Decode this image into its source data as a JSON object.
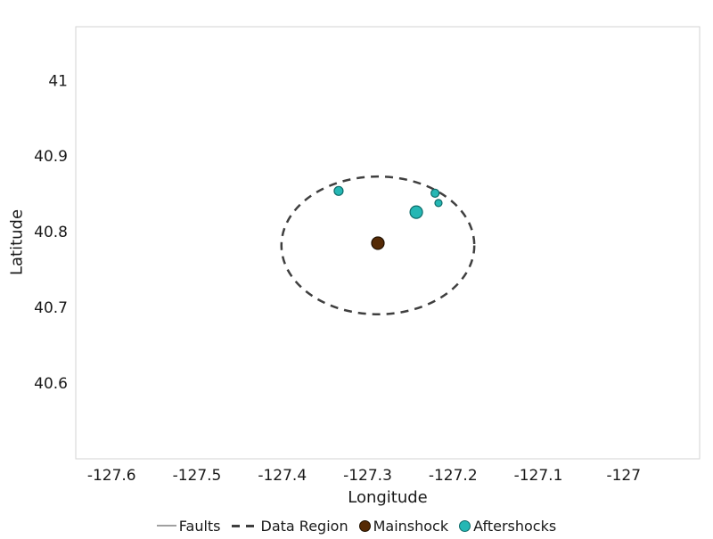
{
  "chart_data": {
    "type": "scatter",
    "title": "",
    "xlabel": "Longitude",
    "ylabel": "Latitude",
    "xlim": [
      -127.642,
      -126.911
    ],
    "ylim": [
      40.5,
      41.071
    ],
    "xticks": [
      -127.6,
      -127.5,
      -127.4,
      -127.3,
      -127.2,
      -127.1,
      -127.0
    ],
    "xtick_labels": [
      "-127.6",
      "-127.5",
      "-127.4",
      "-127.3",
      "-127.2",
      "-127.1",
      "-127"
    ],
    "yticks": [
      41.0,
      40.9,
      40.8,
      40.7,
      40.6
    ],
    "ytick_labels": [
      "41",
      "40.9",
      "40.8",
      "40.7",
      "40.6"
    ],
    "grid": false,
    "border_color": "#d3d3d3",
    "text_color": "#191919",
    "data_region": {
      "label": "Data Region",
      "center": {
        "x": -127.288,
        "y": 40.782
      },
      "rx": 0.113,
      "ry": 0.091,
      "color": "#3f3f3f",
      "dash": "9 7",
      "stroke_width": 2.5
    },
    "series": [
      {
        "name": "Mainshock",
        "color": "#552a05",
        "edge_color": "#1f1000",
        "points": [
          {
            "x": -127.288,
            "y": 40.785,
            "r": 7
          }
        ]
      },
      {
        "name": "Aftershocks",
        "color": "#25b7b4",
        "edge_color": "#0e6b69",
        "points": [
          {
            "x": -127.334,
            "y": 40.854,
            "r": 5
          },
          {
            "x": -127.243,
            "y": 40.826,
            "r": 7
          },
          {
            "x": -127.221,
            "y": 40.851,
            "r": 4.5
          },
          {
            "x": -127.217,
            "y": 40.838,
            "r": 4
          }
        ]
      }
    ],
    "legend": {
      "position": "bottom-center",
      "items": [
        {
          "label": "Faults",
          "swatch": "line",
          "color": "#a0a0a0"
        },
        {
          "label": "Data Region",
          "swatch": "dashed-line",
          "color": "#3f3f3f"
        },
        {
          "label": "Mainshock",
          "swatch": "circle",
          "color": "#552a05",
          "edge_color": "#1f1000"
        },
        {
          "label": "Aftershocks",
          "swatch": "circle",
          "color": "#25b7b4",
          "edge_color": "#0e6b69"
        }
      ]
    }
  }
}
